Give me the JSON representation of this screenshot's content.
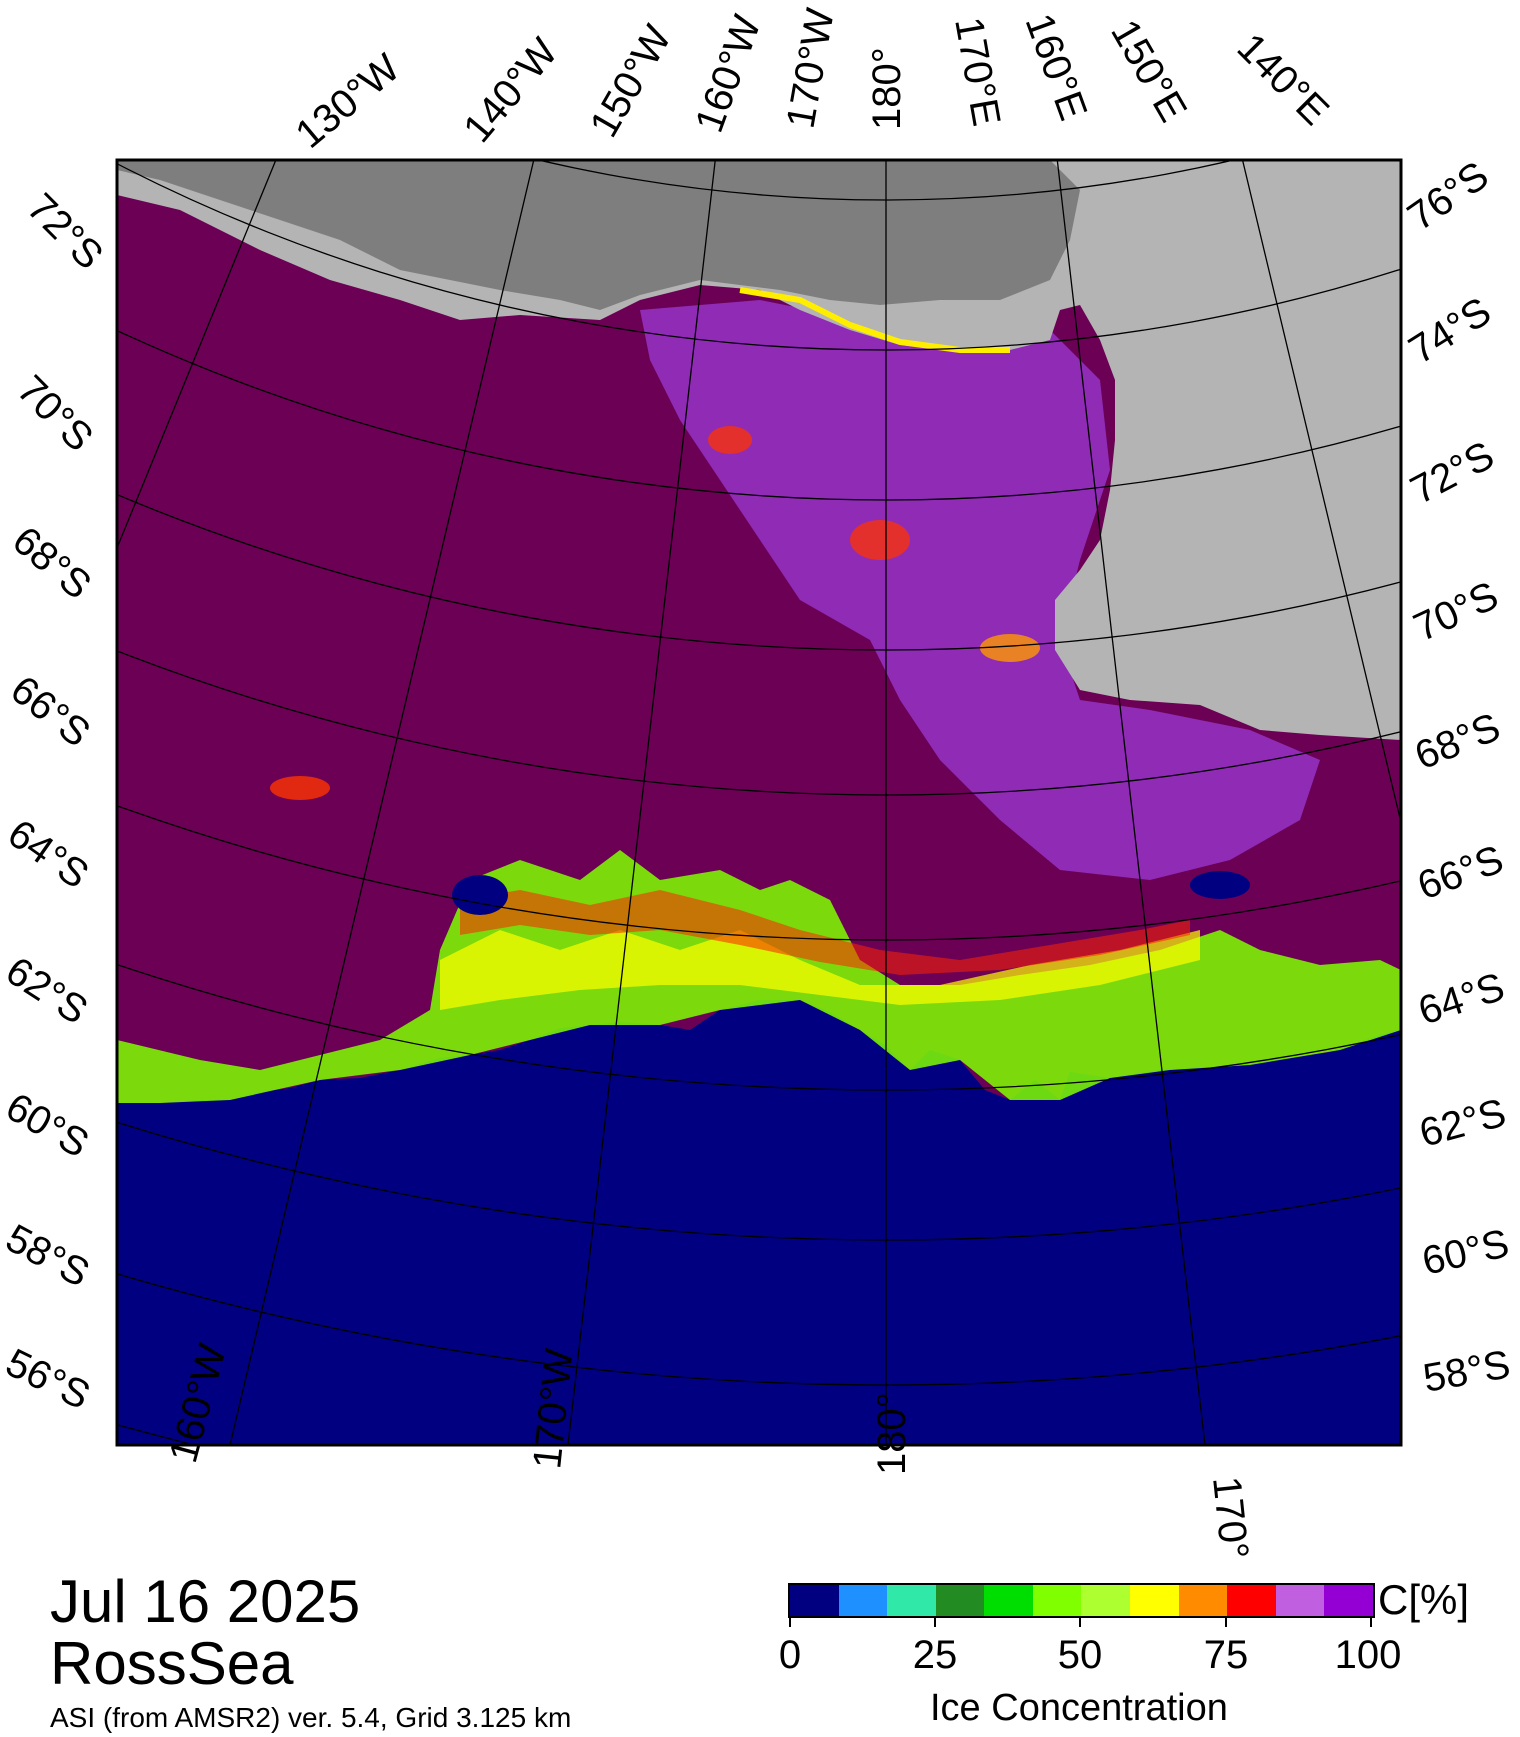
{
  "date": "Jul 16 2025",
  "region": "RossSea",
  "source": "ASI (from AMSR2) ver. 5.4,  Grid 3.125 km",
  "map": {
    "land_color": "#b4b4b4",
    "ice_shelf_color": "#7e7e7e",
    "open_water_color": "#000080",
    "pack_ice_color": "#6b0055",
    "top_labels": [
      "130°W",
      "140°W",
      "150°W",
      "160°W",
      "170°W",
      "180°",
      "170°E",
      "160°E",
      "150°E",
      "140°E"
    ],
    "left_labels": [
      "72°S",
      "70°S",
      "68°S",
      "66°S",
      "64°S",
      "62°S",
      "60°S",
      "58°S",
      "56°S"
    ],
    "right_labels": [
      "76°S",
      "74°S",
      "72°S",
      "70°S",
      "68°S",
      "66°S",
      "64°S",
      "62°S",
      "60°S",
      "58°S"
    ],
    "bottom_labels": [
      "160°W",
      "170°W",
      "180°",
      "170°E"
    ]
  },
  "colorbar": {
    "unit": "C[%]",
    "title": "Ice Concentration",
    "ticks": [
      "0",
      "25",
      "50",
      "75",
      "100"
    ],
    "colors": [
      "#000080",
      "#1e90ff",
      "#30e8a8",
      "#228b22",
      "#00dd00",
      "#7fff00",
      "#adff2f",
      "#ffff00",
      "#ff8c00",
      "#ff0000",
      "#c060e0",
      "#9400d3"
    ]
  }
}
